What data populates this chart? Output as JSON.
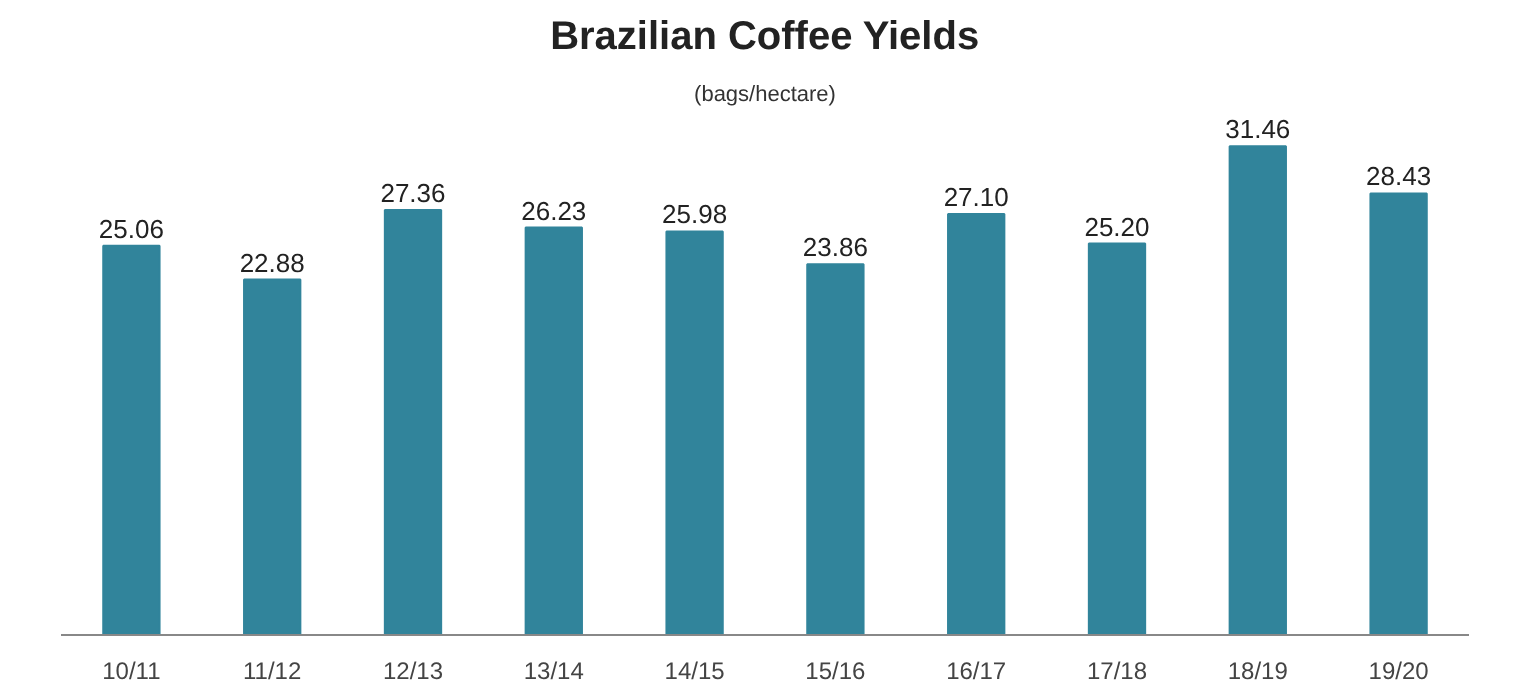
{
  "chart_data": {
    "type": "bar",
    "title": "Brazilian Coffee Yields",
    "subtitle": "(bags/hectare)",
    "categories": [
      "10/11",
      "11/12",
      "12/13",
      "13/14",
      "14/15",
      "15/16",
      "16/17",
      "17/18",
      "18/19",
      "19/20"
    ],
    "values": [
      25.06,
      22.88,
      27.36,
      26.23,
      25.98,
      23.86,
      27.1,
      25.2,
      31.46,
      28.43
    ],
    "value_labels": [
      "25.06",
      "22.88",
      "27.36",
      "26.23",
      "25.98",
      "23.86",
      "27.10",
      "25.20",
      "31.46",
      "28.43"
    ],
    "color": "#31849b",
    "tick_labels": "x",
    "grid": false
  }
}
